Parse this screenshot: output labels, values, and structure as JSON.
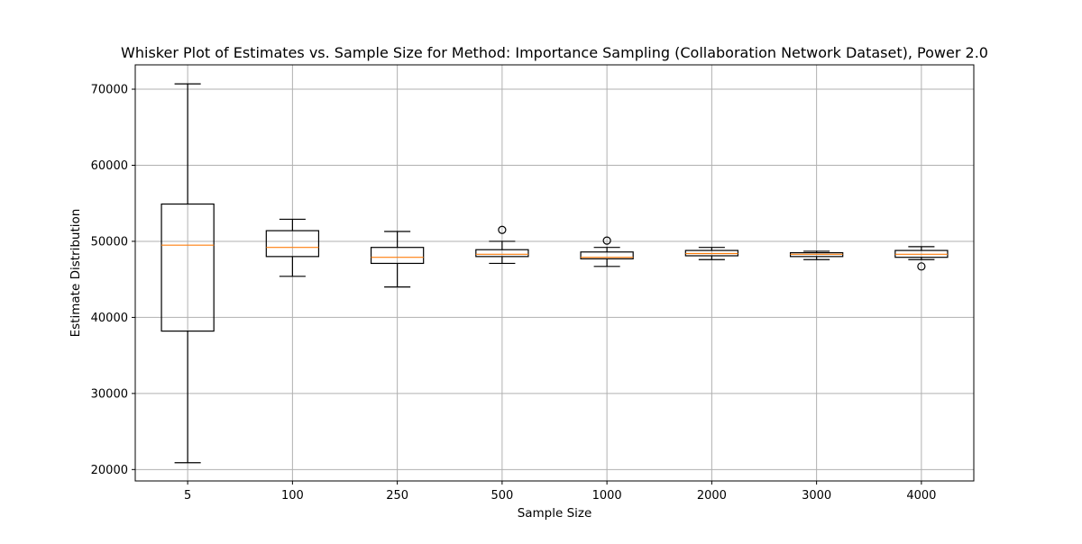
{
  "chart_data": {
    "type": "box",
    "title": "Whisker Plot of Estimates vs. Sample Size for Method: Importance Sampling (Collaboration Network Dataset), Power 2.0",
    "xlabel": "Sample Size",
    "ylabel": "Estimate Distribution",
    "categories": [
      "5",
      "100",
      "250",
      "500",
      "1000",
      "2000",
      "3000",
      "4000"
    ],
    "yticks": [
      20000,
      30000,
      40000,
      50000,
      60000,
      70000
    ],
    "ytick_labels": [
      "20000",
      "30000",
      "40000",
      "50000",
      "60000",
      "70000"
    ],
    "ylim": [
      18500,
      73200
    ],
    "grid": true,
    "box_color": "#000000",
    "median_color": "#ff7f0e",
    "grid_color": "#b0b0b0",
    "boxes": [
      {
        "category": "5",
        "whislo": 20900,
        "q1": 38200,
        "med": 49500,
        "q3": 54900,
        "whishi": 70700,
        "fliers": []
      },
      {
        "category": "100",
        "whislo": 45400,
        "q1": 48000,
        "med": 49200,
        "q3": 51400,
        "whishi": 52900,
        "fliers": []
      },
      {
        "category": "250",
        "whislo": 44000,
        "q1": 47100,
        "med": 47900,
        "q3": 49200,
        "whishi": 51300,
        "fliers": []
      },
      {
        "category": "500",
        "whislo": 47100,
        "q1": 48000,
        "med": 48300,
        "q3": 48900,
        "whishi": 50000,
        "fliers": [
          51500
        ]
      },
      {
        "category": "1000",
        "whislo": 46700,
        "q1": 47700,
        "med": 47900,
        "q3": 48600,
        "whishi": 49200,
        "fliers": [
          50100
        ]
      },
      {
        "category": "2000",
        "whislo": 47600,
        "q1": 48100,
        "med": 48400,
        "q3": 48800,
        "whishi": 49200,
        "fliers": []
      },
      {
        "category": "3000",
        "whislo": 47600,
        "q1": 48000,
        "med": 48300,
        "q3": 48500,
        "whishi": 48700,
        "fliers": []
      },
      {
        "category": "4000",
        "whislo": 47600,
        "q1": 47900,
        "med": 48300,
        "q3": 48800,
        "whishi": 49300,
        "fliers": [
          46700
        ]
      }
    ]
  }
}
